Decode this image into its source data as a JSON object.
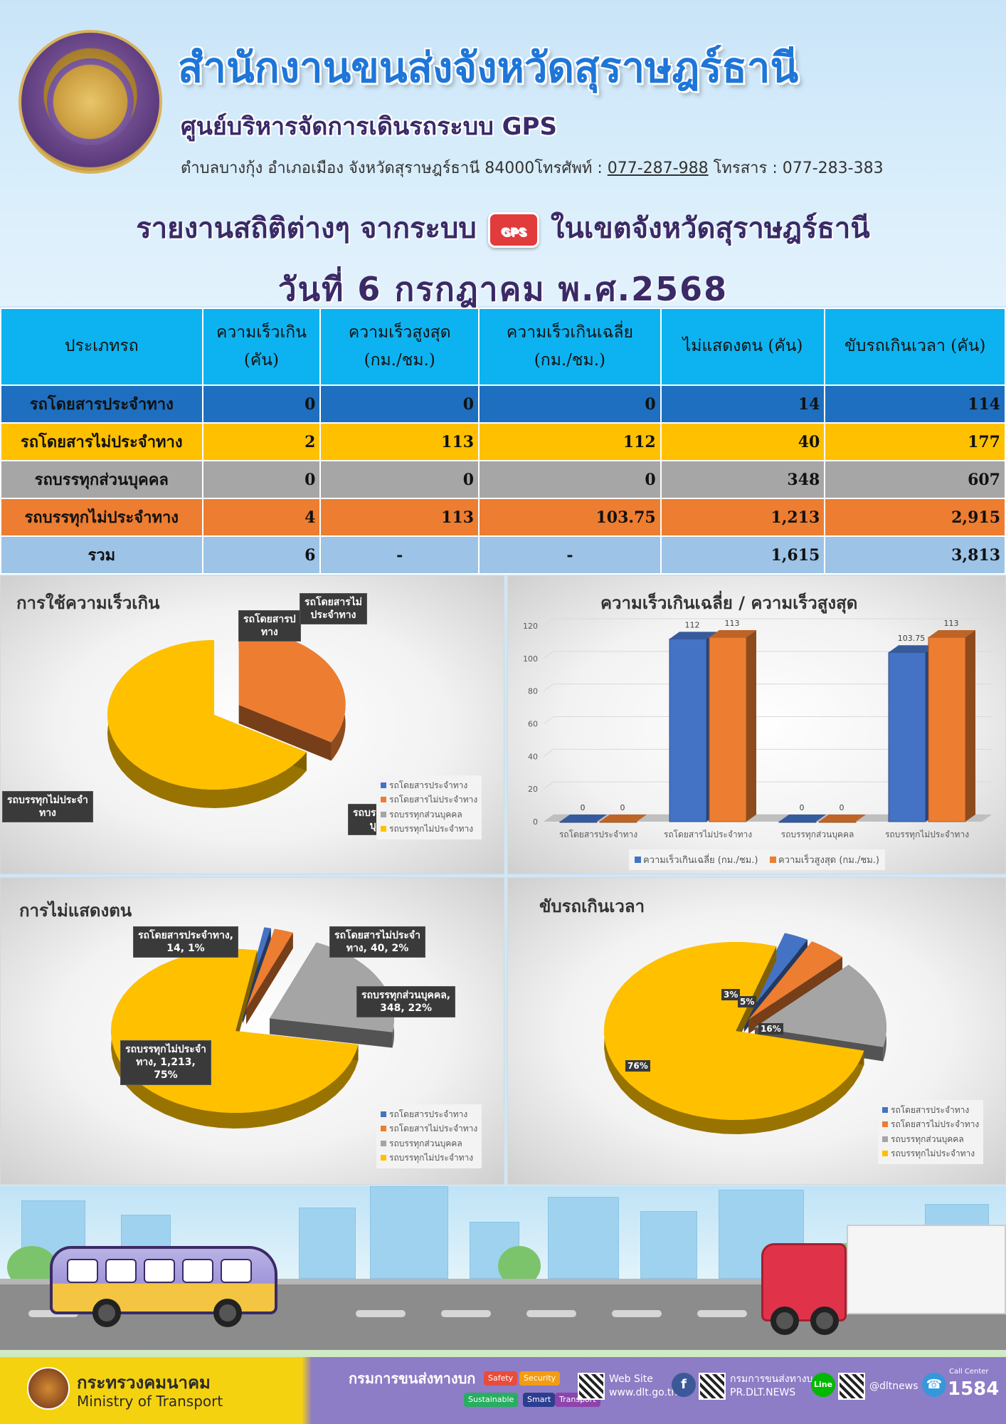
{
  "header": {
    "title": "สำนักงานขนส่งจังหวัดสุราษฎร์ธานี",
    "subtitle": "ศูนย์บริหารจัดการเดินรถระบบ GPS",
    "address_prefix": "ตำบลบางกุ้ง อำเภอเมือง จังหวัดสุราษฎร์ธานี 84000โทรศัพท์ : ",
    "phone": "077-287-988",
    "fax": " โทรสาร : 077-283-383",
    "report_title_left": "รายงานสถิติต่างๆ จากระบบ",
    "gps_badge": "GPS",
    "report_title_right": "ในเขตจังหวัดสุราษฎร์ธานี",
    "report_date": "วันที่ 6 กรกฎาคม พ.ศ.2568"
  },
  "table": {
    "headers": [
      [
        "ประเภทรถ"
      ],
      [
        "ความเร็วเกิน",
        "(คัน)"
      ],
      [
        "ความเร็วสูงสุด",
        "(กม./ชม.)"
      ],
      [
        "ความเร็วเกินเฉลี่ย",
        "(กม./ชม.)"
      ],
      [
        "ไม่แสดงตน (คัน)"
      ],
      [
        "ขับรถเกินเวลา (คัน)"
      ]
    ],
    "rows": [
      [
        "รถโดยสารประจำทาง",
        "0",
        "0",
        "0",
        "14",
        "114"
      ],
      [
        "รถโดยสารไม่ประจำทาง",
        "2",
        "113",
        "112",
        "40",
        "177"
      ],
      [
        "รถบรรทุกส่วนบุคคล",
        "0",
        "0",
        "0",
        "348",
        "607"
      ],
      [
        "รถบรรทุกไม่ประจำทาง",
        "4",
        "113",
        "103.75",
        "1,213",
        "2,915"
      ],
      [
        "รวม",
        "6",
        "-",
        "-",
        "1,615",
        "3,813"
      ]
    ]
  },
  "colors": {
    "bus_fixed": "#4472c4",
    "bus_nonfixed": "#ed7d31",
    "truck_private": "#a5a5a5",
    "truck_nonfixed": "#ffc000"
  },
  "chart_data": [
    {
      "type": "pie",
      "title": "การใช้ความเร็วเกิน",
      "categories": [
        "รถโดยสารประจำทาง",
        "รถโดยสารไม่ประจำทาง",
        "รถบรรทุกส่วนบุคคล",
        "รถบรรทุกไม่ประจำทาง"
      ],
      "values": [
        0,
        2,
        0,
        4
      ],
      "labels": [
        "รถโดยสารประจำทาง",
        "รถโดยสารไม่ประจำทาง",
        "รถบรรทุกส่วนบุคคล",
        "รถบรรทุกไม่ประจำทาง"
      ],
      "legend": "bottom-right"
    },
    {
      "type": "bar",
      "title": "ความเร็วเกินเฉลี่ย / ความเร็วสูงสุด",
      "categories": [
        "รถโดยสารประจำทาง",
        "รถโดยสารไม่ประจำทาง",
        "รถบรรทุกส่วนบุคคล",
        "รถบรรทุกไม่ประจำทาง"
      ],
      "series": [
        {
          "name": "ความเร็วเกินเฉลี่ย (กม./ชม.)",
          "values": [
            0,
            112,
            0,
            103.75
          ],
          "labels": [
            "0",
            "112",
            "0",
            "103.75"
          ]
        },
        {
          "name": "ความเร็วสูงสุด (กม./ชม.)",
          "values": [
            0,
            113,
            0,
            113
          ],
          "labels": [
            "0",
            "113",
            "0",
            "113"
          ]
        }
      ],
      "ylim": [
        0,
        120
      ],
      "yticks": [
        0,
        20,
        40,
        60,
        80,
        100,
        120
      ],
      "grid": true,
      "legend": "bottom"
    },
    {
      "type": "pie",
      "title": "การไม่แสดงตน",
      "categories": [
        "รถโดยสารประจำทาง",
        "รถโดยสารไม่ประจำทาง",
        "รถบรรทุกส่วนบุคคล",
        "รถบรรทุกไม่ประจำทาง"
      ],
      "values": [
        14,
        40,
        348,
        1213
      ],
      "labels": [
        [
          "รถโดยสารประจำทาง,",
          "14, 1%"
        ],
        [
          "รถโดยสารไม่ประจำ",
          "ทาง, 40, 2%"
        ],
        [
          "รถบรรทุกส่วนบุคคล,",
          "348, 22%"
        ],
        [
          "รถบรรทุกไม่ประจำ",
          "ทาง, 1,213,",
          "75%"
        ]
      ],
      "legend": "bottom-right"
    },
    {
      "type": "pie",
      "title": "ขับรถเกินเวลา",
      "categories": [
        "รถโดยสารประจำทาง",
        "รถโดยสารไม่ประจำทาง",
        "รถบรรทุกส่วนบุคคล",
        "รถบรรทุกไม่ประจำทาง"
      ],
      "values": [
        114,
        177,
        607,
        2915
      ],
      "labels": [
        "3%",
        "5%",
        "16%",
        "76%"
      ],
      "legend": "bottom-right"
    }
  ],
  "pie1_labels": [
    [
      "รถโดยสารป",
      "ทาง"
    ],
    [
      "รถโดยสารไม่",
      "ประจำทาง"
    ],
    [
      "รถบรรทุกส่วน",
      "บุคคล"
    ],
    [
      "รถบรรทุกไม่ประจำ",
      "ทาง"
    ]
  ],
  "footer": {
    "ministry_th": "กระทรวงคมนาคม",
    "ministry_en": "Ministry of Transport",
    "dlt": "กรมการขนส่งทางบก",
    "badges": [
      "Safety",
      "Security",
      "Sustainable",
      "Smart",
      "Transport"
    ],
    "website_label": "Web Site",
    "website": "www.dlt.go.th",
    "facebook_name": "กรมการขนส่งทางบก",
    "facebook_handle": "PR.DLT.NEWS",
    "line_label": "Line",
    "line_handle": "@dltnews",
    "call_center_label": "Call Center",
    "call_center": "1584"
  }
}
